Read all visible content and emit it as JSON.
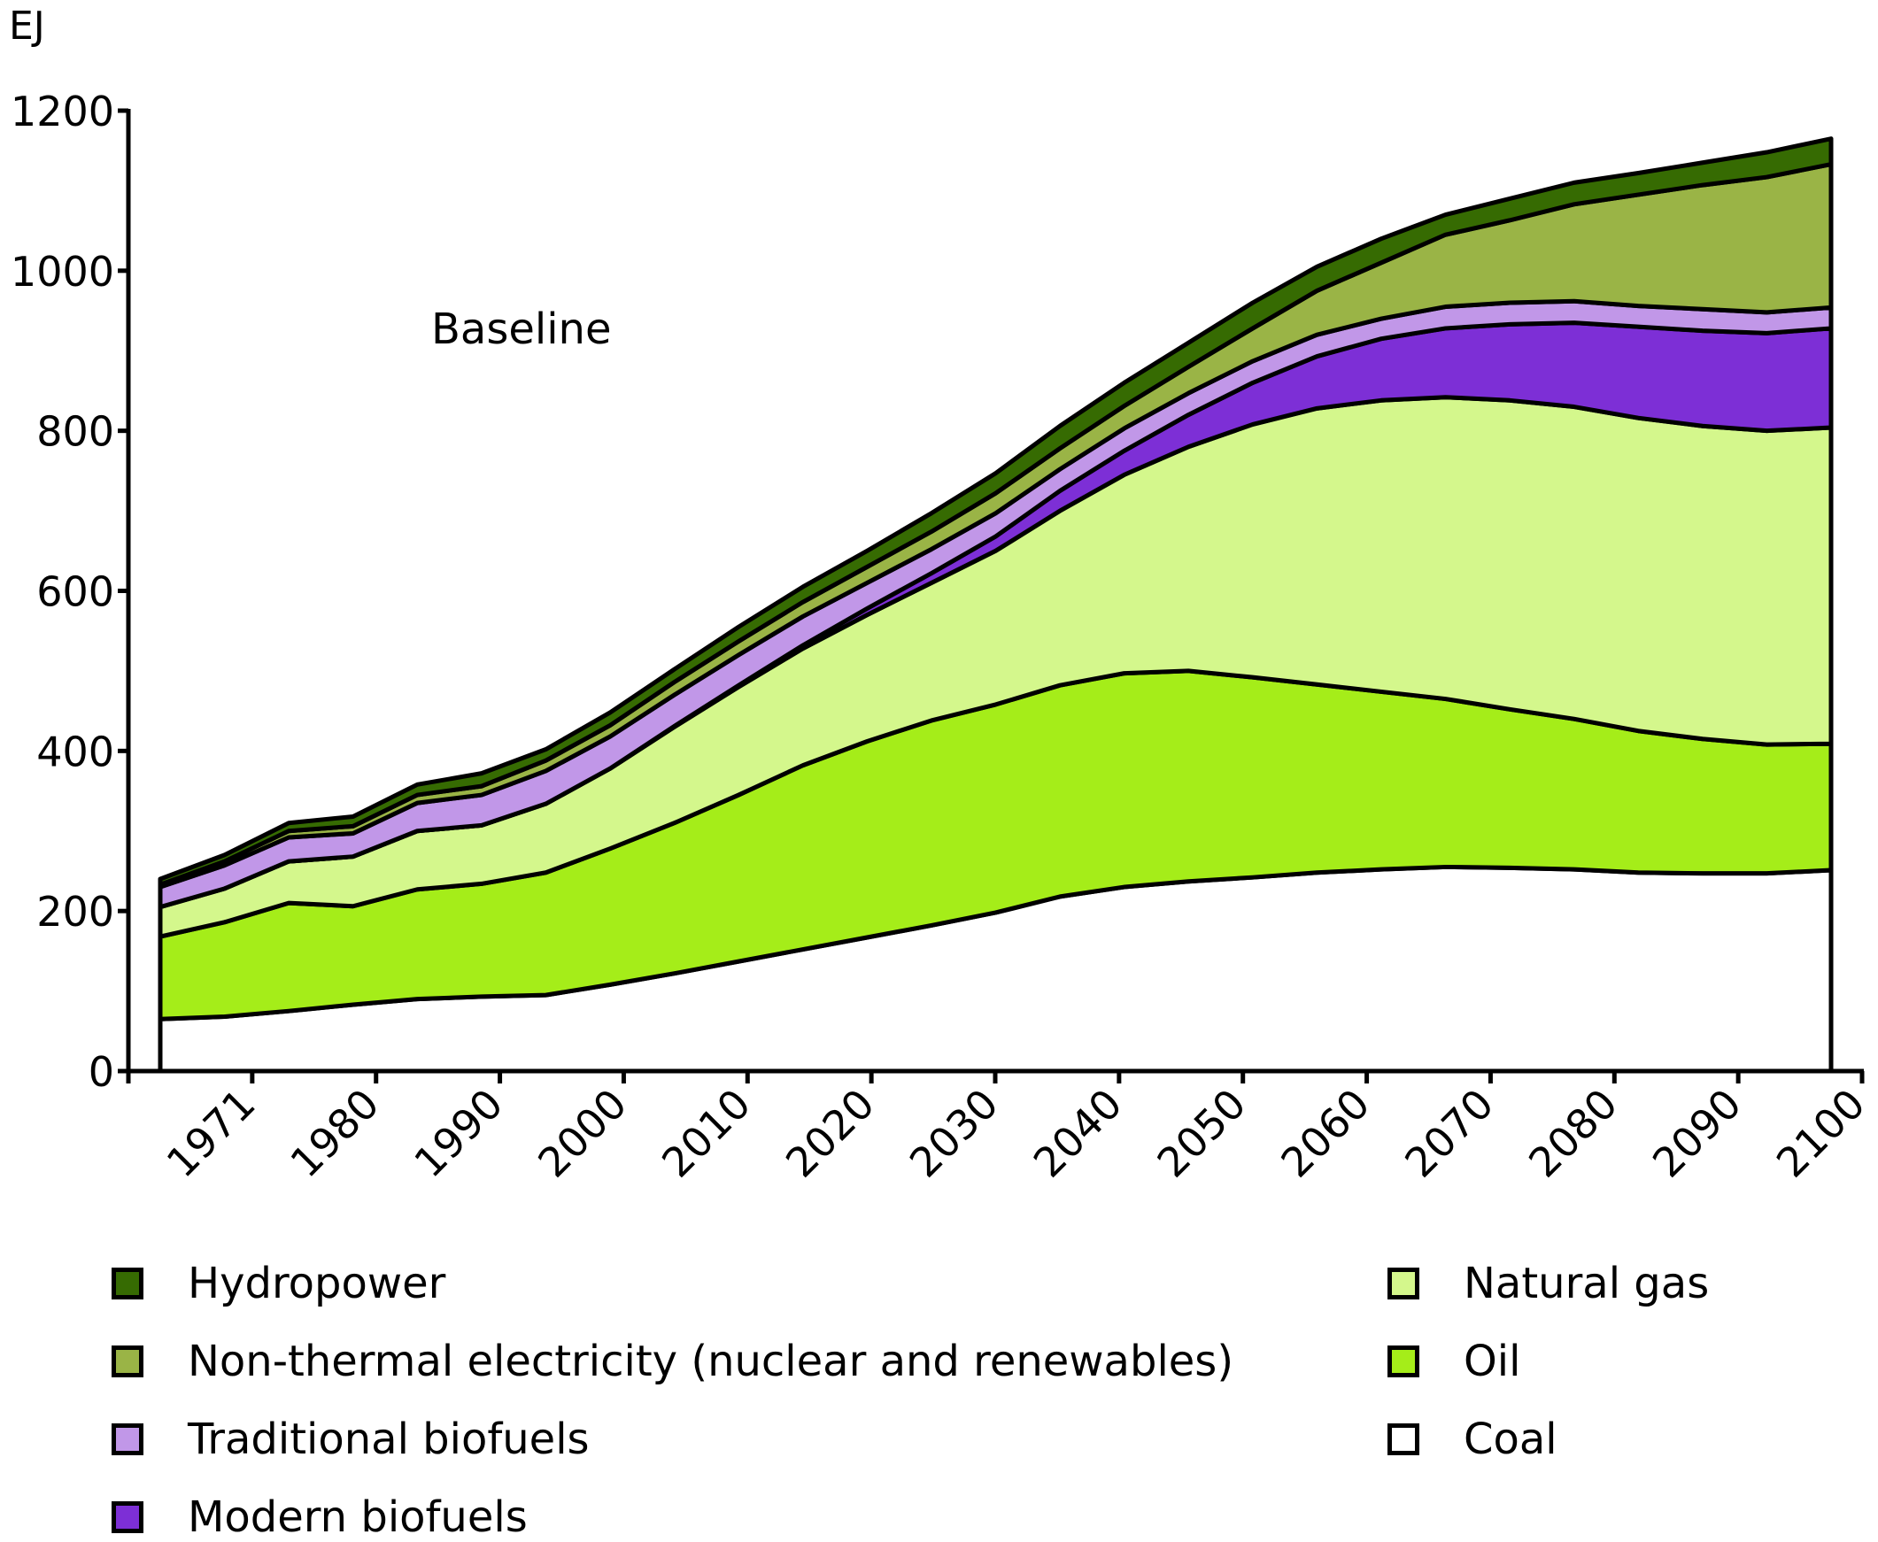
{
  "chart_data": {
    "type": "area",
    "stacked": true,
    "title": "",
    "annotation": "Baseline",
    "ylabel": "EJ",
    "xlabel": "",
    "ylim": [
      0,
      1200
    ],
    "yticks": [
      0,
      200,
      400,
      600,
      800,
      1000,
      1200
    ],
    "xtick_labels": [
      "1971",
      "1980",
      "1990",
      "2000",
      "2010",
      "2020",
      "2030",
      "2040",
      "2050",
      "2060",
      "2070",
      "2080",
      "2090",
      "2100"
    ],
    "x": [
      1971,
      1975,
      1980,
      1985,
      1990,
      1995,
      2000,
      2005,
      2010,
      2015,
      2020,
      2025,
      2030,
      2035,
      2040,
      2045,
      2050,
      2055,
      2060,
      2065,
      2070,
      2075,
      2080,
      2085,
      2090,
      2095,
      2100
    ],
    "grid": false,
    "legend_position": "bottom",
    "series": [
      {
        "name": "Coal",
        "color": "#ffffff",
        "values": [
          65,
          68,
          75,
          83,
          90,
          93,
          95,
          108,
          122,
          137,
          152,
          167,
          182,
          198,
          218,
          230,
          237,
          242,
          248,
          252,
          255,
          254,
          252,
          248,
          247,
          247,
          251
        ]
      },
      {
        "name": "Oil",
        "color": "#a5ed19",
        "values": [
          103,
          118,
          135,
          123,
          137,
          141,
          153,
          170,
          188,
          208,
          230,
          245,
          256,
          260,
          264,
          267,
          263,
          250,
          235,
          222,
          210,
          198,
          188,
          177,
          168,
          161,
          158
        ]
      },
      {
        "name": "Natural gas",
        "color": "#d4f78c",
        "values": [
          37,
          42,
          52,
          62,
          73,
          73,
          86,
          100,
          120,
          135,
          146,
          158,
          172,
          192,
          218,
          248,
          280,
          316,
          345,
          364,
          377,
          386,
          390,
          391,
          391,
          392,
          395
        ]
      },
      {
        "name": "Modern biofuels",
        "color": "#7d2fd6",
        "values": [
          0,
          0,
          0,
          0,
          0,
          0,
          0,
          0,
          1,
          2,
          4,
          8,
          12,
          18,
          25,
          30,
          40,
          52,
          65,
          77,
          86,
          95,
          105,
          114,
          119,
          122,
          124
        ]
      },
      {
        "name": "Traditional biofuels",
        "color": "#c197e8",
        "values": [
          25,
          29,
          30,
          29,
          35,
          38,
          41,
          40,
          39,
          38,
          36,
          32,
          30,
          29,
          27,
          28,
          27,
          27,
          27,
          25,
          27,
          27,
          27,
          26,
          27,
          26,
          26
        ]
      },
      {
        "name": "Non-thermal electricity (nuclear and renewables)",
        "color": "#9ab446",
        "values": [
          3,
          5,
          8,
          9,
          10,
          11,
          13,
          14,
          16,
          17,
          18,
          20,
          22,
          25,
          26,
          28,
          33,
          41,
          55,
          70,
          90,
          103,
          121,
          139,
          155,
          169,
          179
        ]
      },
      {
        "name": "Hydropower",
        "color": "#366b02",
        "values": [
          7,
          8,
          10,
          12,
          13,
          16,
          14,
          16,
          16,
          18,
          19,
          20,
          23,
          25,
          28,
          29,
          30,
          32,
          30,
          30,
          25,
          27,
          27,
          27,
          28,
          31,
          32
        ]
      }
    ]
  },
  "legend": {
    "left": [
      {
        "label": "Hydropower",
        "color": "#366b02"
      },
      {
        "label": "Non-thermal electricity (nuclear and renewables)",
        "color": "#9ab446"
      },
      {
        "label": "Traditional biofuels",
        "color": "#c197e8"
      },
      {
        "label": "Modern biofuels",
        "color": "#7d2fd6"
      }
    ],
    "right": [
      {
        "label": "Natural gas",
        "color": "#d4f78c"
      },
      {
        "label": "Oil",
        "color": "#a5ed19"
      },
      {
        "label": "Coal",
        "color": "#ffffff"
      }
    ]
  }
}
